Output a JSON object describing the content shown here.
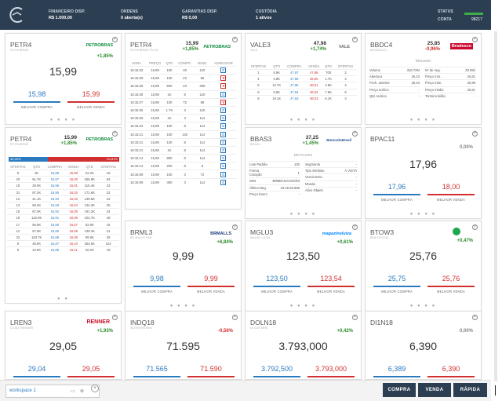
{
  "header": {
    "financeiro_label": "FINANCEIRO DISP.",
    "financeiro_value": "R$ 1.000,00",
    "ordens_label": "ORDENS",
    "ordens_value": "0 aberta(s)",
    "garantias_label": "GARANTIAS DISP.",
    "garantias_value": "R$ 0,00",
    "custodia_label": "CUSTÓDIA",
    "custodia_value": "1 ativos",
    "status_label": "STATUS",
    "conta_label": "CONTA",
    "conta_value": "98217",
    "status_color": "#3fae49"
  },
  "common": {
    "bid_label": "MELHOR COMPRA",
    "ask_label": "MELHOR VENDA",
    "dots": "● ● ● ●"
  },
  "petr4_a": {
    "ticker": "PETR4",
    "sub": "PETROBRAS",
    "brand": "PETROBRAS",
    "change": "+1,85%",
    "last": "15,99",
    "bid": "15,98",
    "ask": "15,99"
  },
  "petr4_b": {
    "ticker": "PETR4",
    "sub": "PETROBRAS PN N2",
    "price": "15,99",
    "change": "+1,85%",
    "brand": "PETROBRAS",
    "headers": [
      "HORA",
      "PREÇO",
      "QTD",
      "COMPR.",
      "VEND.",
      "AGRESSOR"
    ],
    "rows": [
      [
        "16:15:33",
        "15,99",
        "100",
        "40",
        "120",
        "C"
      ],
      [
        "16:15:29",
        "15,99",
        "100",
        "23",
        "58",
        "V"
      ],
      [
        "16:15:28",
        "15,99",
        "500",
        "23",
        "308",
        "V"
      ],
      [
        "16:15:28",
        "15,99",
        "1K",
        "8",
        "120",
        "C"
      ],
      [
        "16:15:27",
        "15,98",
        "100",
        "72",
        "58",
        "V"
      ],
      [
        "16:15:25",
        "15,99",
        "1.7K",
        "3",
        "120",
        "C"
      ],
      [
        "16:15:25",
        "15,99",
        "1K",
        "3",
        "114",
        "C"
      ],
      [
        "16:15:23",
        "15,99",
        "100",
        "8",
        "114",
        "C"
      ],
      [
        "16:15:21",
        "15,99",
        "100",
        "120",
        "114",
        "C"
      ],
      [
        "16:15:21",
        "15,99",
        "100",
        "8",
        "114",
        "C"
      ],
      [
        "16:15:21",
        "15,99",
        "1K",
        "8",
        "114",
        "C"
      ],
      [
        "16:15:14",
        "15,99",
        "800",
        "8",
        "114",
        "C"
      ],
      [
        "16:15:14",
        "15,99",
        "200",
        "8",
        "8",
        "C"
      ],
      [
        "16:15:09",
        "15,99",
        "100",
        "3",
        "72",
        "C"
      ],
      [
        "16:15:09",
        "15,99",
        "400",
        "3",
        "114",
        "C"
      ]
    ]
  },
  "vale3": {
    "ticker": "VALE3",
    "sub": "VALE",
    "price": "47,98",
    "change": "+1,74%",
    "brand": "VALE",
    "headers": [
      "OFERTAS",
      "QTD",
      "COMPRA",
      "VENDA",
      "QTD",
      "OFERTAS"
    ],
    "rows": [
      [
        "1",
        "5.9K",
        "47,97",
        "47,98",
        "700",
        "2"
      ],
      [
        "4",
        "4.8K",
        "47,96",
        "48,00",
        "1.7K",
        "3"
      ],
      [
        "8",
        "12.7K",
        "47,95",
        "48,01",
        "4.8K",
        "4"
      ],
      [
        "8",
        "8.6K",
        "47,94",
        "48,02",
        "7.6K",
        "8"
      ],
      [
        "8",
        "19.1K",
        "47,93",
        "48,03",
        "6.1K",
        "3"
      ]
    ]
  },
  "bbdc4": {
    "ticker": "BBDC4",
    "sub": "BRADESCO",
    "price": "25,85",
    "change": "-0,96%",
    "brand": "Bradesco",
    "section": "RESUMO",
    "left": [
      [
        "Volume",
        "318.72M"
      ],
      [
        "Abertura",
        "26,10"
      ],
      [
        "Fech. anterior",
        "26,10"
      ],
      [
        "Preço teórico",
        "-"
      ],
      [
        "Qtd. teórica",
        "-"
      ]
    ],
    "right": [
      [
        "Nº de neg.",
        "20.992"
      ],
      [
        "Preço mín.",
        "25,81"
      ],
      [
        "Preço máx.",
        "25,99"
      ],
      [
        "Preço médio",
        "25,91"
      ],
      [
        "Termino leilão",
        "-"
      ]
    ]
  },
  "petr4_c": {
    "ticker": "PETR4",
    "sub": "PETROBRAS",
    "price": "15,99",
    "change": "+1,85%",
    "brand": "PETROBRAS",
    "bar_buy": "35,49%",
    "bar_sell": "64,51%",
    "bar_buy_fraction": 0.3549,
    "headers": [
      "OFERTAS",
      "QTD",
      "COMPRA",
      "VENDA",
      "QTD",
      "OFERTAS"
    ],
    "rows": [
      [
        "6",
        "3K",
        "15,98",
        "15,99",
        "22.2K",
        "15"
      ],
      [
        "20",
        "81.7K",
        "15,97",
        "16,00",
        "256.8K",
        "53"
      ],
      [
        "19",
        "35.0K",
        "15,96",
        "16,01",
        "115.4K",
        "23"
      ],
      [
        "31",
        "87.2K",
        "15,95",
        "16,02",
        "171.6K",
        "33"
      ],
      [
        "12",
        "41.1K",
        "15,94",
        "16,03",
        "135.5K",
        "22"
      ],
      [
        "13",
        "68.4K",
        "15,93",
        "16,04",
        "134.3K",
        "25"
      ],
      [
        "15",
        "87.0K",
        "15,92",
        "16,05",
        "191.2K",
        "34"
      ],
      [
        "18",
        "122.9K",
        "15,91",
        "16,06",
        "101.7K",
        "18"
      ],
      [
        "17",
        "56.8K",
        "15,90",
        "16,07",
        "62.9K",
        "16"
      ],
      [
        "12",
        "57.8K",
        "15,89",
        "16,08",
        "138.4K",
        "21"
      ],
      [
        "33",
        "163.7K",
        "15,88",
        "16,09",
        "99.8K",
        "29"
      ],
      [
        "8",
        "48.8K",
        "15,87",
        "16,10",
        "353.5K",
        "124"
      ],
      [
        "9",
        "43.5K",
        "15,86",
        "16,11",
        "26.2K",
        "19"
      ]
    ],
    "dots": "● ●"
  },
  "bbas3": {
    "ticker": "BBAS3",
    "sub": "BRASIL",
    "price": "37,25",
    "change": "+1,45%",
    "brand": "BancodoBrasil",
    "section": "DETALHES",
    "left": [
      [
        "Lote Padrão",
        "100"
      ],
      [
        "Forma Cotação",
        "1"
      ],
      [
        "ISIN",
        "BRBBASACNOR3"
      ],
      [
        "Último Neg.",
        "16:15:33.968"
      ],
      [
        "Preço Exerc.",
        "-"
      ]
    ],
    "right": [
      [
        "Segmento",
        "-"
      ],
      [
        "Tipo Símbolo",
        "À VISTA"
      ],
      [
        "Vencimento",
        "-"
      ],
      [
        "Moeda",
        "-"
      ],
      [
        "Ativo Objeto",
        "-"
      ]
    ]
  },
  "bpac11": {
    "ticker": "BPAC11",
    "change": "0,00%",
    "last": "17,96",
    "bid": "17,96",
    "ask": "18,00"
  },
  "brml3": {
    "ticker": "BRML3",
    "sub": "BR MALLS PAR",
    "brand": "BRMALLS",
    "change": "+6,84%",
    "last": "9,99",
    "bid": "9,98",
    "ask": "9,99"
  },
  "mglu3": {
    "ticker": "MGLU3",
    "sub": "MAGAZ LUIZA",
    "brand": "magazineluiza",
    "change": "+0,61%",
    "last": "123,50",
    "bid": "123,50",
    "ask": "123,54"
  },
  "btow3": {
    "ticker": "BTOW3",
    "sub": "B2W DIGITAL",
    "change": "+0,47%",
    "last": "25,76",
    "bid": "25,75",
    "ask": "25,76"
  },
  "lren3": {
    "ticker": "LREN3",
    "sub": "LOJAS RENNER",
    "brand": "RENNER",
    "change": "+1,93%",
    "last": "29,05",
    "bid": "29,04",
    "ask": "29,05"
  },
  "indq18": {
    "ticker": "INDQ18",
    "sub": "IBOVESPA MINI",
    "change": "-0,56%",
    "last": "71.595",
    "bid": "71.565",
    "ask": "71.590"
  },
  "doln18": {
    "ticker": "DOLN18",
    "sub": "DOLAR MINI",
    "change": "+0,42%",
    "last": "3.793,000",
    "bid": "3.792,500",
    "ask": "3.793,000"
  },
  "di1n18": {
    "ticker": "DI1N18",
    "change": "0,00%",
    "last": "6,390",
    "bid": "6,389",
    "ask": "6,390"
  },
  "footer": {
    "workspace": "workspace 1",
    "compra": "COMPRA",
    "venda": "VENDA",
    "rapida": "RÁPIDA"
  }
}
